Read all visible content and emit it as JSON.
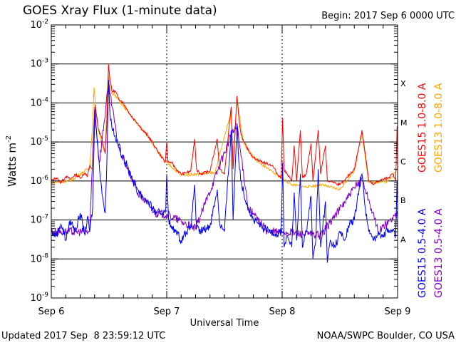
{
  "chart_data": {
    "type": "line",
    "title": "GOES Xray Flux (1-minute data)",
    "begin_label": "Begin:  2017 Sep 6 0000 UTC",
    "xlabel": "Universal Time",
    "ylabel": "Watts m",
    "ylabel_exp": "-2",
    "x_unit": "hours since 2017 Sep 6 0000 UTC",
    "xlim": [
      0,
      72
    ],
    "ylim": [
      1e-09,
      0.01
    ],
    "yscale": "log",
    "grid": "horizontal lines at decades 1e-8 to 1e-3, dotted vertical lines at day boundaries",
    "x_ticks": [
      {
        "x": 0,
        "label": "Sep 6"
      },
      {
        "x": 24,
        "label": "Sep 7"
      },
      {
        "x": 48,
        "label": "Sep 8"
      },
      {
        "x": 72,
        "label": "Sep 9"
      }
    ],
    "y_ticks": [
      {
        "exp": -9,
        "base": "10",
        "sup": "-9"
      },
      {
        "exp": -8,
        "base": "10",
        "sup": "-8"
      },
      {
        "exp": -7,
        "base": "10",
        "sup": "-7"
      },
      {
        "exp": -6,
        "base": "10",
        "sup": "-6"
      },
      {
        "exp": -5,
        "base": "10",
        "sup": "-5"
      },
      {
        "exp": -4,
        "base": "10",
        "sup": "-4"
      },
      {
        "exp": -3,
        "base": "10",
        "sup": "-3"
      },
      {
        "exp": -2,
        "base": "10",
        "sup": "-2"
      }
    ],
    "flare_classes": [
      {
        "label": "A",
        "exp": -7.5
      },
      {
        "label": "B",
        "exp": -6.5
      },
      {
        "label": "C",
        "exp": -5.5
      },
      {
        "label": "M",
        "exp": -4.5
      },
      {
        "label": "X",
        "exp": -3.5
      }
    ],
    "series": [
      {
        "name": "GOES15 1.0-8.0 A",
        "color": "#ff0000",
        "points": [
          [
            0,
            1e-06
          ],
          [
            1,
            1.2e-06
          ],
          [
            2,
            9e-07
          ],
          [
            3,
            1.3e-06
          ],
          [
            4,
            1.1e-06
          ],
          [
            5,
            1.5e-06
          ],
          [
            6,
            1.2e-06
          ],
          [
            7,
            1.6e-06
          ],
          [
            7.5,
            1.3e-06
          ],
          [
            8,
            2.5e-06
          ],
          [
            8.5,
            2e-06
          ],
          [
            8.9,
            3e-05
          ],
          [
            9.1,
            9e-05
          ],
          [
            9.4,
            5e-05
          ],
          [
            9.8,
            2e-05
          ],
          [
            10.3,
            1.5e-05
          ],
          [
            10.8,
            8e-06
          ],
          [
            11.2,
            5e-06
          ],
          [
            11.6,
            4e-05
          ],
          [
            11.9,
            0.001
          ],
          [
            12.2,
            0.0004
          ],
          [
            12.6,
            0.0002
          ],
          [
            13.3,
            0.0002
          ],
          [
            14,
            0.00013
          ],
          [
            15,
            0.0001
          ],
          [
            16,
            6e-05
          ],
          [
            17,
            4e-05
          ],
          [
            18,
            3e-05
          ],
          [
            19,
            2e-05
          ],
          [
            20,
            1.5e-05
          ],
          [
            21,
            1e-05
          ],
          [
            22,
            6e-06
          ],
          [
            23,
            4e-06
          ],
          [
            23.7,
            3e-06
          ],
          [
            24,
            1e-05
          ],
          [
            24.3,
            3e-06
          ],
          [
            25,
            3e-06
          ],
          [
            26,
            2e-06
          ],
          [
            27,
            1.5e-06
          ],
          [
            28,
            1.6e-06
          ],
          [
            29,
            1.8e-06
          ],
          [
            29.8,
            1.2e-05
          ],
          [
            30.2,
            2e-06
          ],
          [
            31,
            1.5e-06
          ],
          [
            33,
            1.8e-06
          ],
          [
            34.5,
            1.2e-05
          ],
          [
            35,
            2e-06
          ],
          [
            36,
            1.5e-06
          ],
          [
            37.4,
            8e-05
          ],
          [
            37.8,
            2e-06
          ],
          [
            38.6,
            0.00015
          ],
          [
            39,
            4e-05
          ],
          [
            39.5,
            1.5e-05
          ],
          [
            40,
            1e-05
          ],
          [
            41,
            6e-06
          ],
          [
            42,
            4e-06
          ],
          [
            44,
            3e-06
          ],
          [
            46,
            2.5e-06
          ],
          [
            47,
            1.5e-06
          ],
          [
            47.8,
            1.2e-06
          ],
          [
            48.1,
            4e-05
          ],
          [
            48.4,
            2e-06
          ],
          [
            49,
            1.5e-06
          ],
          [
            50,
            1e-06
          ],
          [
            50.5,
            8e-06
          ],
          [
            51,
            1e-06
          ],
          [
            51.8,
            2e-05
          ],
          [
            52.2,
            1.2e-06
          ],
          [
            53,
            1.5e-06
          ],
          [
            54,
            9e-06
          ],
          [
            54.4,
            1e-06
          ],
          [
            55.5,
            2e-05
          ],
          [
            56,
            1.5e-06
          ],
          [
            57,
            8e-06
          ],
          [
            57.4,
            1e-06
          ],
          [
            58,
            1e-06
          ],
          [
            60,
            8e-07
          ],
          [
            61,
            1e-06
          ],
          [
            62,
            1.5e-06
          ],
          [
            63,
            2e-06
          ],
          [
            64,
            8e-06
          ],
          [
            64.6,
            2e-05
          ],
          [
            65.3,
            5e-06
          ],
          [
            66,
            1e-06
          ],
          [
            67,
            8e-07
          ],
          [
            68,
            1e-06
          ],
          [
            70,
            1.2e-06
          ],
          [
            71,
            1.5e-06
          ],
          [
            71.6,
            1e-06
          ],
          [
            71.9,
            2.5e-05
          ],
          [
            72,
            3e-06
          ]
        ]
      },
      {
        "name": "GOES13 1.0-8.0 A",
        "color": "#ffa500",
        "points": [
          [
            0,
            9e-07
          ],
          [
            4,
            1e-06
          ],
          [
            8,
            2.2e-06
          ],
          [
            8.6,
            3e-05
          ],
          [
            8.9,
            0.00025
          ],
          [
            9.3,
            5e-05
          ],
          [
            10,
            1.5e-05
          ],
          [
            11.2,
            5e-06
          ],
          [
            11.8,
            0.0006
          ],
          [
            12.4,
            0.0002
          ],
          [
            14,
            0.00012
          ],
          [
            17,
            4e-05
          ],
          [
            20,
            1.4e-05
          ],
          [
            23,
            4e-06
          ],
          [
            24,
            3e-06
          ],
          [
            27,
            1.4e-06
          ],
          [
            30,
            1.5e-06
          ],
          [
            34,
            1.6e-06
          ],
          [
            37.4,
            6e-05
          ],
          [
            37.8,
            2e-06
          ],
          [
            38.6,
            0.00013
          ],
          [
            40,
            9e-06
          ],
          [
            43,
            3e-06
          ],
          [
            47,
            1.4e-06
          ],
          [
            50,
            8e-07
          ],
          [
            53,
            7e-07
          ],
          [
            56,
            8e-07
          ],
          [
            60,
            6e-07
          ],
          [
            63,
            1.8e-06
          ],
          [
            64.6,
            1.8e-05
          ],
          [
            66,
            9e-07
          ],
          [
            70,
            1e-06
          ],
          [
            72,
            2e-06
          ]
        ]
      },
      {
        "name": "GOES15 0.5-4.0 A",
        "color": "#0000ff",
        "points": [
          [
            0,
            5e-08
          ],
          [
            1,
            4e-08
          ],
          [
            2,
            8e-08
          ],
          [
            3,
            3e-08
          ],
          [
            4,
            1e-07
          ],
          [
            5,
            5e-08
          ],
          [
            6,
            1.5e-07
          ],
          [
            7,
            4e-08
          ],
          [
            7.5,
            1.2e-07
          ],
          [
            8,
            5e-08
          ],
          [
            8.6,
            2e-07
          ],
          [
            8.9,
            1e-05
          ],
          [
            9.1,
            8e-05
          ],
          [
            9.4,
            2e-05
          ],
          [
            9.8,
            4e-06
          ],
          [
            10.3,
            1e-06
          ],
          [
            10.8,
            3e-07
          ],
          [
            11.2,
            1.5e-07
          ],
          [
            11.6,
            5e-06
          ],
          [
            11.9,
            0.0004
          ],
          [
            12.2,
            5e-05
          ],
          [
            12.8,
            2e-05
          ],
          [
            13.5,
            1e-05
          ],
          [
            14,
            8e-06
          ],
          [
            15,
            4e-06
          ],
          [
            16,
            2e-06
          ],
          [
            17,
            1e-06
          ],
          [
            18,
            6e-07
          ],
          [
            19,
            4e-07
          ],
          [
            20,
            3e-07
          ],
          [
            21,
            2e-07
          ],
          [
            22,
            1.5e-07
          ],
          [
            23,
            1.5e-07
          ],
          [
            23.8,
            2e-07
          ],
          [
            24,
            1.5e-06
          ],
          [
            24.4,
            1e-07
          ],
          [
            25,
            6e-08
          ],
          [
            26,
            5e-08
          ],
          [
            27,
            3e-08
          ],
          [
            28,
            5e-08
          ],
          [
            29,
            6e-08
          ],
          [
            29.8,
            8e-07
          ],
          [
            30.2,
            6e-08
          ],
          [
            31,
            5e-08
          ],
          [
            33,
            7e-08
          ],
          [
            34.5,
            6e-07
          ],
          [
            35,
            8e-08
          ],
          [
            36,
            5e-08
          ],
          [
            37.4,
            2e-05
          ],
          [
            37.8,
            1e-07
          ],
          [
            38.6,
            3e-05
          ],
          [
            39,
            3e-06
          ],
          [
            39.5,
            1e-06
          ],
          [
            40,
            5e-07
          ],
          [
            41,
            2e-07
          ],
          [
            42,
            1e-07
          ],
          [
            43,
            8e-08
          ],
          [
            44,
            6e-08
          ],
          [
            46,
            5e-08
          ],
          [
            47,
            4e-08
          ],
          [
            47.8,
            5e-08
          ],
          [
            48.1,
            3e-06
          ],
          [
            48.4,
            2e-08
          ],
          [
            49,
            4e-08
          ],
          [
            50,
            2e-08
          ],
          [
            50.5,
            5e-07
          ],
          [
            51,
            3e-08
          ],
          [
            51.8,
            1.5e-06
          ],
          [
            52.2,
            2e-08
          ],
          [
            53,
            5e-08
          ],
          [
            54,
            4e-07
          ],
          [
            54.4,
            1e-08
          ],
          [
            55,
            3e-08
          ],
          [
            55.5,
            2e-06
          ],
          [
            56,
            2e-08
          ],
          [
            57,
            3e-07
          ],
          [
            57.4,
            8e-09
          ],
          [
            58,
            3e-08
          ],
          [
            59,
            2e-08
          ],
          [
            60,
            5e-08
          ],
          [
            61,
            3e-08
          ],
          [
            62,
            8e-08
          ],
          [
            63,
            1e-07
          ],
          [
            64,
            6e-07
          ],
          [
            64.6,
            1.5e-06
          ],
          [
            65.3,
            2e-07
          ],
          [
            66,
            5e-08
          ],
          [
            67,
            3e-08
          ],
          [
            68,
            5e-08
          ],
          [
            69,
            4e-08
          ],
          [
            70,
            6e-08
          ],
          [
            71,
            5e-08
          ],
          [
            71.6,
            4e-08
          ],
          [
            71.9,
            1e-06
          ],
          [
            72,
            2e-07
          ]
        ]
      },
      {
        "name": "GOES13 0.5-4.0 A",
        "color": "#7f00c0",
        "points": [
          [
            0,
            5e-08
          ],
          [
            8,
            5e-08
          ],
          [
            9,
            7e-05
          ],
          [
            10,
            3e-06
          ],
          [
            11.9,
            0.0003
          ],
          [
            14,
            7e-06
          ],
          [
            18,
            5e-07
          ],
          [
            22,
            1.4e-07
          ],
          [
            24,
            1.4e-07
          ],
          [
            30,
            6e-08
          ],
          [
            37.4,
            1.5e-05
          ],
          [
            38.6,
            2.5e-05
          ],
          [
            41,
            2e-07
          ],
          [
            45,
            5e-08
          ],
          [
            48,
            5e-08
          ],
          [
            56,
            4e-08
          ],
          [
            64.6,
            1.2e-06
          ],
          [
            68,
            5e-08
          ],
          [
            72,
            1.5e-07
          ]
        ]
      }
    ]
  },
  "footer": {
    "updated": "Updated 2017 Sep  8 23:59:12 UTC",
    "credit": "NOAA/SWPC Boulder, CO USA"
  }
}
